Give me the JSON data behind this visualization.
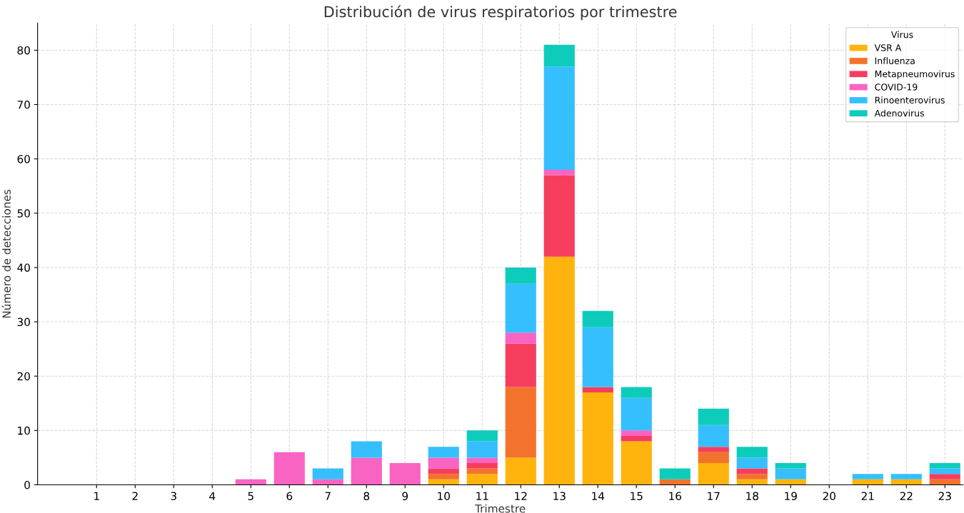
{
  "chart_data": {
    "type": "bar",
    "title": "Distribución de virus respiratorios por trimestre",
    "xlabel": "Trimestre",
    "ylabel": "Número de detecciones",
    "legend_title": "Virus",
    "categories": [
      "1",
      "2",
      "3",
      "4",
      "5",
      "6",
      "7",
      "8",
      "9",
      "10",
      "11",
      "12",
      "13",
      "14",
      "15",
      "16",
      "17",
      "18",
      "19",
      "20",
      "21",
      "22",
      "23"
    ],
    "stacked": true,
    "series": [
      {
        "name": "VSR A",
        "color": "#ffb000",
        "values": [
          0,
          0,
          0,
          0,
          0,
          0,
          0,
          0,
          0,
          1,
          2,
          5,
          42,
          17,
          8,
          0,
          4,
          1,
          1,
          0,
          1,
          1,
          0
        ]
      },
      {
        "name": "Influenza",
        "color": "#f26b21",
        "values": [
          0,
          0,
          0,
          0,
          0,
          0,
          0,
          0,
          0,
          1,
          1,
          13,
          0,
          0,
          0,
          1,
          2,
          1,
          0,
          0,
          0,
          0,
          1
        ]
      },
      {
        "name": "Metapneumovirus",
        "color": "#f53355",
        "values": [
          0,
          0,
          0,
          0,
          0,
          0,
          0,
          0,
          0,
          1,
          1,
          8,
          15,
          1,
          1,
          0,
          1,
          1,
          0,
          0,
          0,
          0,
          1
        ]
      },
      {
        "name": "COVID-19",
        "color": "#f95cc0",
        "values": [
          0,
          0,
          0,
          0,
          1,
          6,
          1,
          5,
          4,
          2,
          1,
          2,
          1,
          0,
          1,
          0,
          0,
          0,
          0,
          0,
          0,
          0,
          0
        ]
      },
      {
        "name": "Rinoenterovirus",
        "color": "#2bbcff",
        "values": [
          0,
          0,
          0,
          0,
          0,
          0,
          2,
          3,
          0,
          2,
          3,
          9,
          19,
          11,
          6,
          0,
          4,
          2,
          2,
          0,
          1,
          1,
          1
        ]
      },
      {
        "name": "Adenovirus",
        "color": "#00c9b8",
        "values": [
          0,
          0,
          0,
          0,
          0,
          0,
          0,
          0,
          0,
          0,
          2,
          3,
          4,
          3,
          2,
          2,
          3,
          2,
          1,
          0,
          0,
          0,
          1
        ]
      }
    ],
    "ylim": [
      0,
      85
    ],
    "yticks": [
      0,
      10,
      20,
      30,
      40,
      50,
      60,
      70,
      80
    ],
    "grid": true,
    "legend": "top right"
  }
}
